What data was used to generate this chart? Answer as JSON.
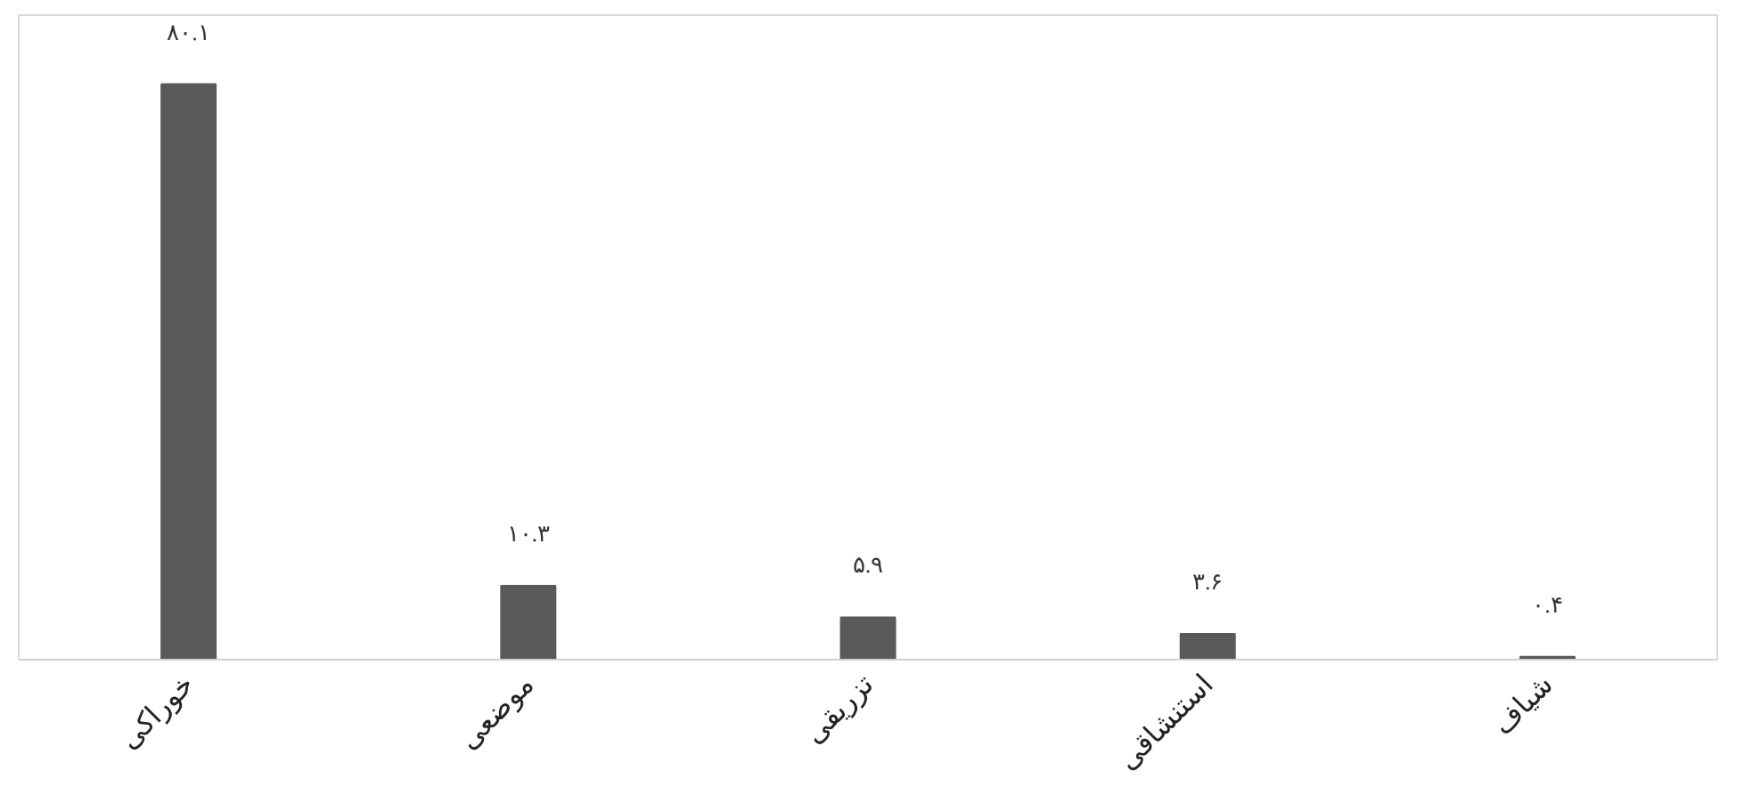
{
  "chart_data": {
    "type": "bar",
    "categories": [
      "خوراکی",
      "موضعی",
      "تزریقی",
      "استنشاقی",
      "شیاف"
    ],
    "values": [
      80.1,
      10.3,
      5.9,
      3.6,
      0.4
    ],
    "value_labels": [
      "۸۰.۱",
      "۱۰.۳",
      "۵.۹",
      "۳.۶",
      "۰.۴"
    ],
    "color": "#595959"
  }
}
